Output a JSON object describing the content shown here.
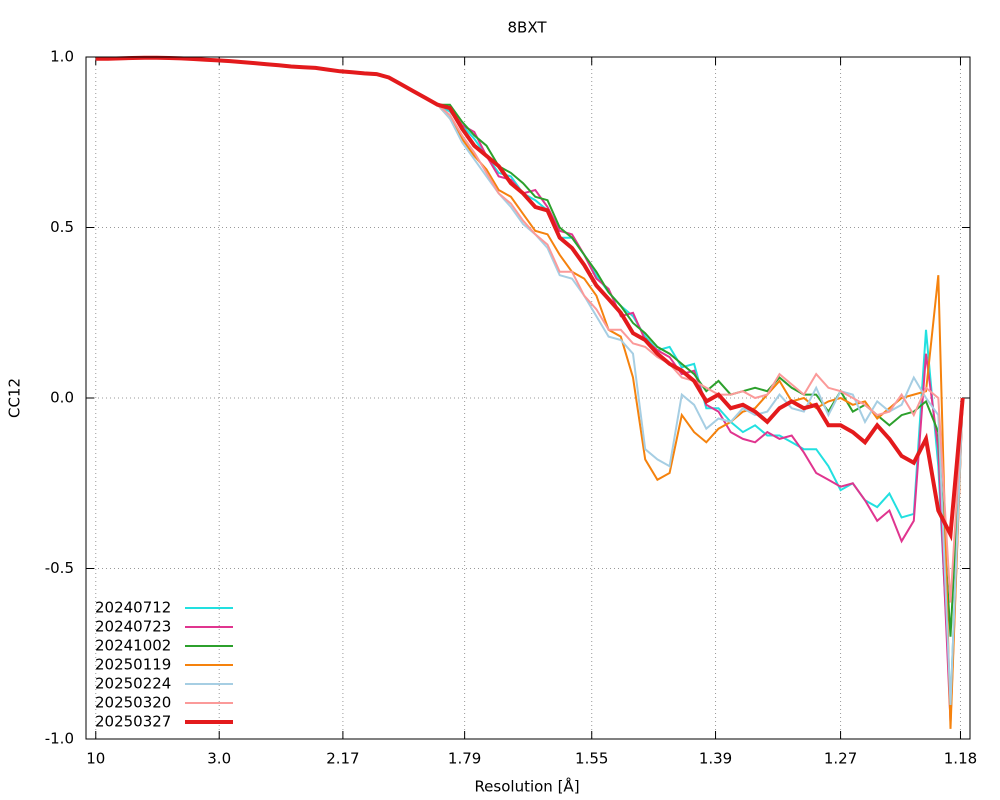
{
  "chart_data": {
    "type": "line",
    "title": "8BXT",
    "x_label": "Resolution [Å]",
    "y_label": "CC12",
    "xlim": [
      0.002,
      0.726
    ],
    "ylim": [
      -1.0,
      1.0
    ],
    "xticks": [
      {
        "value": 0.01,
        "label": "10"
      },
      {
        "value": 0.1111,
        "label": "3.0"
      },
      {
        "value": 0.2124,
        "label": "2.17"
      },
      {
        "value": 0.3121,
        "label": "1.79"
      },
      {
        "value": 0.4162,
        "label": "1.55"
      },
      {
        "value": 0.5176,
        "label": "1.39"
      },
      {
        "value": 0.62,
        "label": "1.27"
      },
      {
        "value": 0.7182,
        "label": "1.18"
      }
    ],
    "yticks": [
      {
        "value": -1.0,
        "label": "-1.0"
      },
      -0.5,
      {
        "value": 0.0,
        "label": "0.0"
      },
      0.5,
      {
        "value": 1.0,
        "label": "1.0"
      }
    ],
    "grid": true,
    "legend": "lower left",
    "x": [
      0.01,
      0.02,
      0.03,
      0.04,
      0.05,
      0.06,
      0.07,
      0.08,
      0.09,
      0.1,
      0.11,
      0.12,
      0.13,
      0.14,
      0.15,
      0.16,
      0.17,
      0.18,
      0.19,
      0.2,
      0.21,
      0.22,
      0.23,
      0.24,
      0.25,
      0.26,
      0.27,
      0.28,
      0.29,
      0.3,
      0.31,
      0.32,
      0.33,
      0.34,
      0.35,
      0.36,
      0.37,
      0.38,
      0.39,
      0.4,
      0.41,
      0.42,
      0.43,
      0.44,
      0.45,
      0.46,
      0.47,
      0.48,
      0.49,
      0.5,
      0.51,
      0.52,
      0.53,
      0.54,
      0.55,
      0.56,
      0.57,
      0.58,
      0.59,
      0.6,
      0.61,
      0.62,
      0.63,
      0.64,
      0.65,
      0.66,
      0.67,
      0.68,
      0.69,
      0.7,
      0.71,
      0.72
    ],
    "series": [
      {
        "name": "20240712",
        "color": "#22e0e0",
        "width": 2,
        "values": [
          0.995,
          0.995,
          0.996,
          0.997,
          0.998,
          0.998,
          0.997,
          0.996,
          0.994,
          0.992,
          0.99,
          0.988,
          0.985,
          0.982,
          0.979,
          0.976,
          0.972,
          0.97,
          0.968,
          0.963,
          0.958,
          0.955,
          0.952,
          0.95,
          0.94,
          0.92,
          0.9,
          0.88,
          0.86,
          0.84,
          0.8,
          0.76,
          0.71,
          0.66,
          0.65,
          0.6,
          0.58,
          0.55,
          0.47,
          0.47,
          0.42,
          0.36,
          0.31,
          0.27,
          0.24,
          0.18,
          0.14,
          0.15,
          0.09,
          0.1,
          -0.03,
          -0.03,
          -0.07,
          -0.1,
          -0.08,
          -0.11,
          -0.11,
          -0.13,
          -0.15,
          -0.15,
          -0.2,
          -0.27,
          -0.25,
          -0.3,
          -0.32,
          -0.28,
          -0.35,
          -0.34,
          0.2,
          -0.2,
          -0.9,
          0.0
        ]
      },
      {
        "name": "20240723",
        "color": "#e0358f",
        "width": 2,
        "values": [
          0.995,
          0.995,
          0.996,
          0.997,
          0.998,
          0.998,
          0.997,
          0.996,
          0.994,
          0.992,
          0.99,
          0.988,
          0.985,
          0.982,
          0.979,
          0.976,
          0.972,
          0.97,
          0.968,
          0.963,
          0.958,
          0.955,
          0.952,
          0.95,
          0.94,
          0.92,
          0.9,
          0.88,
          0.86,
          0.85,
          0.8,
          0.78,
          0.71,
          0.65,
          0.64,
          0.6,
          0.61,
          0.56,
          0.49,
          0.48,
          0.42,
          0.35,
          0.32,
          0.24,
          0.25,
          0.17,
          0.14,
          0.12,
          0.07,
          0.08,
          -0.02,
          -0.04,
          -0.1,
          -0.12,
          -0.13,
          -0.1,
          -0.12,
          -0.11,
          -0.16,
          -0.22,
          -0.24,
          -0.26,
          -0.25,
          -0.3,
          -0.36,
          -0.33,
          -0.42,
          -0.36,
          0.13,
          -0.15,
          -0.95,
          0.0
        ]
      },
      {
        "name": "20241002",
        "color": "#2ca02c",
        "width": 2,
        "values": [
          0.995,
          0.995,
          0.996,
          0.997,
          0.998,
          0.998,
          0.997,
          0.996,
          0.994,
          0.992,
          0.99,
          0.988,
          0.985,
          0.982,
          0.979,
          0.976,
          0.972,
          0.97,
          0.968,
          0.963,
          0.958,
          0.955,
          0.952,
          0.95,
          0.94,
          0.92,
          0.9,
          0.88,
          0.86,
          0.86,
          0.81,
          0.77,
          0.74,
          0.68,
          0.66,
          0.63,
          0.59,
          0.58,
          0.5,
          0.47,
          0.42,
          0.37,
          0.31,
          0.27,
          0.22,
          0.19,
          0.15,
          0.13,
          0.1,
          0.07,
          0.02,
          0.05,
          0.01,
          0.02,
          0.03,
          0.02,
          0.06,
          0.03,
          0.01,
          0.01,
          -0.04,
          0.02,
          -0.04,
          -0.02,
          -0.05,
          -0.08,
          -0.05,
          -0.04,
          -0.01,
          -0.1,
          -0.7,
          0.0
        ]
      },
      {
        "name": "20250119",
        "color": "#f5820d",
        "width": 2,
        "values": [
          0.995,
          0.995,
          0.996,
          0.997,
          0.998,
          0.998,
          0.997,
          0.996,
          0.994,
          0.992,
          0.99,
          0.988,
          0.985,
          0.982,
          0.979,
          0.976,
          0.972,
          0.97,
          0.968,
          0.963,
          0.958,
          0.955,
          0.952,
          0.95,
          0.94,
          0.92,
          0.9,
          0.88,
          0.86,
          0.82,
          0.76,
          0.71,
          0.67,
          0.61,
          0.59,
          0.54,
          0.49,
          0.48,
          0.42,
          0.37,
          0.35,
          0.3,
          0.2,
          0.18,
          0.06,
          -0.18,
          -0.24,
          -0.22,
          -0.05,
          -0.1,
          -0.13,
          -0.09,
          -0.07,
          -0.04,
          -0.03,
          0.01,
          0.05,
          -0.01,
          0.0,
          -0.03,
          -0.01,
          0.0,
          -0.02,
          -0.01,
          -0.06,
          -0.03,
          0.0,
          0.01,
          0.02,
          0.36,
          -0.97,
          0.0
        ]
      },
      {
        "name": "20250224",
        "color": "#a6cee3",
        "width": 2,
        "values": [
          0.995,
          0.995,
          0.996,
          0.997,
          0.998,
          0.998,
          0.997,
          0.996,
          0.994,
          0.992,
          0.99,
          0.988,
          0.985,
          0.982,
          0.979,
          0.976,
          0.972,
          0.97,
          0.968,
          0.963,
          0.958,
          0.955,
          0.952,
          0.95,
          0.94,
          0.92,
          0.9,
          0.88,
          0.86,
          0.82,
          0.75,
          0.7,
          0.65,
          0.6,
          0.56,
          0.51,
          0.48,
          0.44,
          0.36,
          0.35,
          0.3,
          0.24,
          0.18,
          0.17,
          0.13,
          -0.15,
          -0.18,
          -0.2,
          0.01,
          -0.02,
          -0.09,
          -0.06,
          -0.07,
          -0.03,
          -0.05,
          -0.04,
          0.01,
          -0.03,
          -0.04,
          0.03,
          -0.05,
          0.02,
          0.01,
          -0.07,
          -0.01,
          -0.04,
          -0.02,
          0.06,
          0.0,
          -0.05,
          -0.9,
          0.0
        ]
      },
      {
        "name": "20250320",
        "color": "#fb9a99",
        "width": 2,
        "values": [
          0.995,
          0.995,
          0.996,
          0.997,
          0.998,
          0.998,
          0.997,
          0.996,
          0.994,
          0.992,
          0.99,
          0.988,
          0.985,
          0.982,
          0.979,
          0.976,
          0.972,
          0.97,
          0.968,
          0.963,
          0.958,
          0.955,
          0.952,
          0.95,
          0.94,
          0.92,
          0.9,
          0.88,
          0.86,
          0.83,
          0.77,
          0.72,
          0.66,
          0.6,
          0.57,
          0.52,
          0.48,
          0.45,
          0.37,
          0.37,
          0.3,
          0.26,
          0.2,
          0.2,
          0.16,
          0.15,
          0.12,
          0.1,
          0.06,
          0.05,
          0.03,
          0.01,
          0.01,
          0.02,
          0.0,
          0.01,
          0.07,
          0.04,
          0.01,
          0.07,
          0.03,
          0.02,
          0.0,
          -0.02,
          -0.05,
          -0.04,
          0.01,
          -0.05,
          0.03,
          0.0,
          -0.6,
          0.0
        ]
      },
      {
        "name": "20250327",
        "color": "#e31a1c",
        "width": 4,
        "values": [
          0.995,
          0.995,
          0.996,
          0.997,
          0.998,
          0.998,
          0.997,
          0.996,
          0.994,
          0.992,
          0.99,
          0.988,
          0.985,
          0.982,
          0.979,
          0.976,
          0.972,
          0.97,
          0.968,
          0.963,
          0.958,
          0.955,
          0.952,
          0.95,
          0.94,
          0.92,
          0.9,
          0.88,
          0.86,
          0.85,
          0.79,
          0.74,
          0.71,
          0.68,
          0.63,
          0.6,
          0.56,
          0.55,
          0.47,
          0.44,
          0.39,
          0.33,
          0.29,
          0.25,
          0.19,
          0.17,
          0.13,
          0.1,
          0.08,
          0.05,
          -0.01,
          0.01,
          -0.03,
          -0.02,
          -0.04,
          -0.07,
          -0.03,
          -0.01,
          -0.03,
          -0.02,
          -0.08,
          -0.08,
          -0.1,
          -0.13,
          -0.08,
          -0.12,
          -0.17,
          -0.19,
          -0.12,
          -0.33,
          -0.4,
          0.0
        ]
      }
    ]
  }
}
